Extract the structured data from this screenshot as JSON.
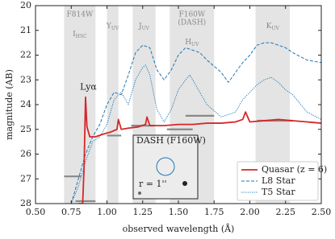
{
  "chart_data": {
    "type": "line",
    "xlabel": "observed wavelength (Å)",
    "ylabel": "magnitude (AB)",
    "xlim": [
      0.5,
      2.5
    ],
    "ylim": [
      28,
      20
    ],
    "xticks": [
      {
        "value": 0.5,
        "label": "0.50"
      },
      {
        "value": 0.75,
        "label": "0.75"
      },
      {
        "value": 1.0,
        "label": "1.00"
      },
      {
        "value": 1.25,
        "label": "1.25"
      },
      {
        "value": 1.5,
        "label": "1.50"
      },
      {
        "value": 1.75,
        "label": "1.75"
      },
      {
        "value": 2.0,
        "label": "2.00"
      },
      {
        "value": 2.25,
        "label": "2.25"
      },
      {
        "value": 2.5,
        "label": "2.50"
      }
    ],
    "yticks": [
      20,
      21,
      22,
      23,
      24,
      25,
      26,
      27,
      28
    ],
    "bands": [
      {
        "range": [
          0.7,
          0.92
        ],
        "title": [
          "F814W"
        ],
        "label": {
          "main": "I",
          "sub": "HSC"
        }
      },
      {
        "range": [
          1.0,
          1.08
        ],
        "label": {
          "main": "Y",
          "sub": "UV"
        }
      },
      {
        "range": [
          1.18,
          1.34
        ],
        "label": {
          "main": "J",
          "sub": "UV"
        }
      },
      {
        "range": [
          1.44,
          1.75
        ],
        "title": [
          "F160W",
          "(DASH)"
        ],
        "label": {
          "main": "H",
          "sub": "UV"
        }
      },
      {
        "range": [
          2.04,
          2.28
        ],
        "label": {
          "main": "K",
          "sub": "UV"
        }
      }
    ],
    "series": [
      {
        "name": "Quasar (z = 6)",
        "color": "#d62728",
        "style": "solid",
        "x": [
          0.8,
          0.83,
          0.84,
          0.85,
          0.86,
          0.88,
          0.92,
          0.97,
          1.03,
          1.07,
          1.08,
          1.1,
          1.15,
          1.22,
          1.27,
          1.28,
          1.3,
          1.4,
          1.5,
          1.6,
          1.7,
          1.8,
          1.9,
          1.95,
          1.97,
          2.0,
          2.1,
          2.2,
          2.3,
          2.4,
          2.5
        ],
        "values": [
          28,
          28,
          26.5,
          23.7,
          24.9,
          25.3,
          25.3,
          25.2,
          25.1,
          25.0,
          24.6,
          25.0,
          24.95,
          24.9,
          24.8,
          24.5,
          24.85,
          24.85,
          24.8,
          24.8,
          24.75,
          24.75,
          24.7,
          24.6,
          24.3,
          24.7,
          24.65,
          24.6,
          24.65,
          24.7,
          24.75
        ]
      },
      {
        "name": "L8 Star",
        "color": "#1f77b4",
        "style": "dashed",
        "x": [
          0.75,
          0.8,
          0.85,
          0.9,
          0.95,
          1.0,
          1.05,
          1.1,
          1.15,
          1.2,
          1.25,
          1.3,
          1.35,
          1.4,
          1.45,
          1.5,
          1.55,
          1.6,
          1.65,
          1.7,
          1.8,
          1.85,
          1.9,
          1.95,
          2.0,
          2.05,
          2.1,
          2.15,
          2.2,
          2.25,
          2.3,
          2.4,
          2.5
        ],
        "values": [
          28,
          27.0,
          26.0,
          25.3,
          24.8,
          24.0,
          23.5,
          23.6,
          22.8,
          21.9,
          21.6,
          21.7,
          22.6,
          23.0,
          22.6,
          22.0,
          21.7,
          21.8,
          21.9,
          22.2,
          22.7,
          23.1,
          22.7,
          22.3,
          22.0,
          21.6,
          21.5,
          21.5,
          21.6,
          21.7,
          21.9,
          22.2,
          22.3
        ]
      },
      {
        "name": "T5 Star",
        "color": "#1f77b4",
        "style": "dotted",
        "x": [
          0.75,
          0.8,
          0.85,
          0.9,
          0.95,
          1.0,
          1.05,
          1.1,
          1.15,
          1.2,
          1.25,
          1.27,
          1.3,
          1.35,
          1.4,
          1.45,
          1.5,
          1.55,
          1.58,
          1.62,
          1.7,
          1.8,
          1.9,
          1.95,
          2.0,
          2.05,
          2.1,
          2.15,
          2.2,
          2.25,
          2.3,
          2.4,
          2.5
        ],
        "values": [
          28,
          27.3,
          26.3,
          25.5,
          25.3,
          24.8,
          23.8,
          23.5,
          24.0,
          23.0,
          22.5,
          22.4,
          22.8,
          24.2,
          24.7,
          24.2,
          23.4,
          23.0,
          22.8,
          23.2,
          24.0,
          24.5,
          24.3,
          23.8,
          23.5,
          23.2,
          23.0,
          22.9,
          23.1,
          23.4,
          23.6,
          24.3,
          24.6
        ]
      }
    ],
    "photometry": [
      {
        "x": [
          0.7,
          0.82
        ],
        "value": 26.9
      },
      {
        "x": [
          0.78,
          0.92
        ],
        "value": 27.9
      },
      {
        "x": [
          1.0,
          1.1
        ],
        "value": 25.25
      },
      {
        "x": [
          1.17,
          1.33
        ],
        "value": 24.85
      },
      {
        "x": [
          1.42,
          1.6
        ],
        "value": 25.0
      },
      {
        "x": [
          1.55,
          1.75
        ],
        "value": 24.45
      },
      {
        "x": [
          2.05,
          2.3
        ],
        "value": 24.65
      }
    ],
    "annotation": {
      "text": "Lyα",
      "x": 0.87,
      "y": 23.3,
      "color": "#d62728"
    },
    "inset": {
      "title": "DASH (F160W)",
      "radius_label": "r = 1''"
    },
    "legend": "lower right"
  }
}
